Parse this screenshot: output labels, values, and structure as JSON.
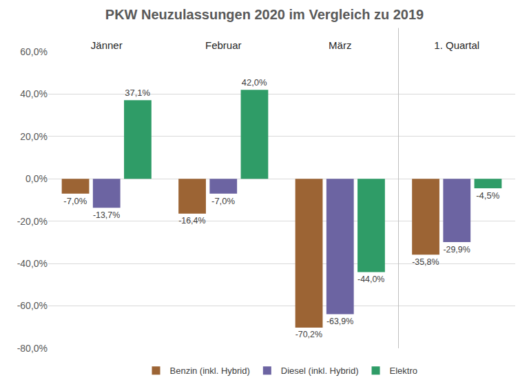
{
  "chart_data": {
    "type": "bar",
    "title": "PKW Neuzulassungen 2020 im Vergleich zu 2019",
    "categories": [
      "Jänner",
      "Februar",
      "März",
      "1. Quartal"
    ],
    "series": [
      {
        "name": "Benzin (inkl. Hybrid)",
        "color": "#9c6434",
        "values": [
          -7.0,
          -16.4,
          -70.2,
          -35.8
        ],
        "value_labels": [
          "-7,0%",
          "-16,4%",
          "-70,2%",
          "-35,8%"
        ]
      },
      {
        "name": "Diesel (inkl. Hybrid)",
        "color": "#6c64a2",
        "values": [
          -13.7,
          -7.0,
          -63.9,
          -29.9
        ],
        "value_labels": [
          "-13,7%",
          "-7,0%",
          "-63,9%",
          "-29,9%"
        ]
      },
      {
        "name": "Elektro",
        "color": "#2f9c67",
        "values": [
          37.1,
          42.0,
          -44.0,
          -4.5
        ],
        "value_labels": [
          "37,1%",
          "42,0%",
          "-44,0%",
          "-4,5%"
        ]
      }
    ],
    "ylim": [
      -80,
      60
    ],
    "yticks": [
      {
        "value": -80,
        "label": "-80,0%"
      },
      {
        "value": -60,
        "label": "-60,0%"
      },
      {
        "value": -40,
        "label": "-40,0%"
      },
      {
        "value": -20,
        "label": "-20,0%"
      },
      {
        "value": 0,
        "label": "0,0%"
      },
      {
        "value": 20,
        "label": "20,0%"
      },
      {
        "value": 40,
        "label": "40,0%"
      },
      {
        "value": 60,
        "label": "60,0%"
      }
    ],
    "grid": true,
    "data_labels": true,
    "legend": "bottom"
  }
}
